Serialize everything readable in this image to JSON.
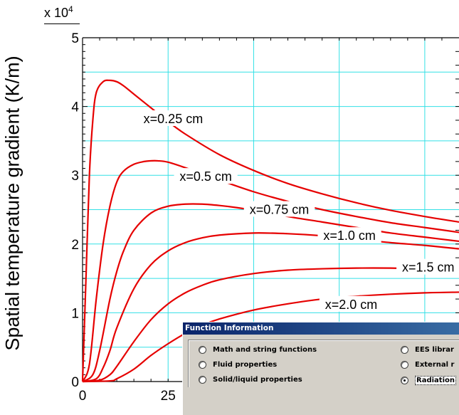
{
  "chart_data": {
    "type": "line",
    "ylabel": "Spatial temperature gradient (K/m)",
    "y_multiplier": "x 10",
    "y_multiplier_exp": "4",
    "xlim": [
      0,
      110
    ],
    "ylim": [
      0,
      5
    ],
    "x_ticks": [
      0,
      25
    ],
    "x_tick_labels": [
      "0",
      "25"
    ],
    "y_ticks": [
      0,
      1,
      2,
      3,
      4,
      5
    ],
    "y_tick_labels": [
      "0",
      "1",
      "2",
      "3",
      "4",
      "5"
    ],
    "grid": true,
    "series_color": "#e60000",
    "grid_color": "#33e0e6",
    "series": [
      {
        "label": "x=0.25 cm",
        "label_x": 26.5,
        "label_y": 3.82,
        "x": [
          0,
          1,
          2,
          3,
          4,
          6,
          8,
          10,
          12,
          15,
          20,
          25,
          30,
          40,
          50,
          60,
          70,
          80,
          90,
          100,
          110
        ],
        "y": [
          0,
          1.5,
          3.0,
          3.8,
          4.2,
          4.36,
          4.38,
          4.36,
          4.3,
          4.18,
          3.98,
          3.78,
          3.6,
          3.3,
          3.07,
          2.88,
          2.73,
          2.6,
          2.49,
          2.4,
          2.32
        ]
      },
      {
        "label": "x=0.5 cm",
        "label_x": 36,
        "label_y": 2.98,
        "x": [
          0,
          2,
          4,
          6,
          8,
          10,
          12,
          15,
          18,
          20,
          22,
          25,
          30,
          35,
          40,
          50,
          60,
          70,
          80,
          90,
          100,
          110
        ],
        "y": [
          0,
          0.25,
          1.2,
          2.0,
          2.55,
          2.9,
          3.06,
          3.16,
          3.2,
          3.21,
          3.21,
          3.19,
          3.11,
          3.02,
          2.93,
          2.76,
          2.62,
          2.5,
          2.4,
          2.31,
          2.24,
          2.17
        ]
      },
      {
        "label": "x=0.75 cm",
        "label_x": 57.5,
        "label_y": 2.5,
        "x": [
          0,
          3,
          5,
          8,
          10,
          12,
          15,
          20,
          25,
          30,
          35,
          40,
          45,
          50,
          60,
          70,
          80,
          90,
          100,
          110
        ],
        "y": [
          0,
          0.1,
          0.45,
          1.2,
          1.6,
          1.9,
          2.2,
          2.45,
          2.55,
          2.58,
          2.58,
          2.56,
          2.53,
          2.49,
          2.4,
          2.32,
          2.24,
          2.16,
          2.1,
          2.04
        ]
      },
      {
        "label": "x=1.0 cm",
        "label_x": 78,
        "label_y": 2.12,
        "x": [
          0,
          4,
          6,
          8,
          10,
          15,
          20,
          25,
          30,
          35,
          40,
          50,
          60,
          70,
          80,
          90,
          100,
          110
        ],
        "y": [
          0,
          0.04,
          0.2,
          0.45,
          0.78,
          1.35,
          1.7,
          1.9,
          2.02,
          2.09,
          2.13,
          2.16,
          2.15,
          2.12,
          2.07,
          2.02,
          1.98,
          1.93
        ]
      },
      {
        "label": "x=1.5 cm",
        "label_x": 101,
        "label_y": 1.66,
        "x": [
          0,
          5,
          8,
          10,
          15,
          20,
          25,
          30,
          35,
          40,
          50,
          60,
          70,
          80,
          90,
          100,
          110
        ],
        "y": [
          0,
          0.02,
          0.1,
          0.22,
          0.58,
          0.9,
          1.13,
          1.29,
          1.4,
          1.48,
          1.57,
          1.62,
          1.64,
          1.65,
          1.65,
          1.64,
          1.63
        ]
      },
      {
        "label": "x=2.0 cm",
        "label_x": 78.5,
        "label_y": 1.12,
        "x": [
          0,
          8,
          10,
          15,
          20,
          25,
          30,
          35,
          40,
          50,
          60,
          70,
          80,
          90,
          100,
          110
        ],
        "y": [
          0,
          0.01,
          0.04,
          0.18,
          0.38,
          0.55,
          0.7,
          0.82,
          0.91,
          1.04,
          1.13,
          1.2,
          1.24,
          1.27,
          1.29,
          1.3
        ]
      }
    ]
  },
  "dialog": {
    "title": "Function Information",
    "options": [
      {
        "label": "Math and string functions",
        "selected": false
      },
      {
        "label": "EES librar",
        "selected": false
      },
      {
        "label": "Fluid properties",
        "selected": false
      },
      {
        "label": "External r",
        "selected": false
      },
      {
        "label": "Solid/liquid properties",
        "selected": false
      },
      {
        "label": "Radiation",
        "selected": true
      }
    ]
  }
}
